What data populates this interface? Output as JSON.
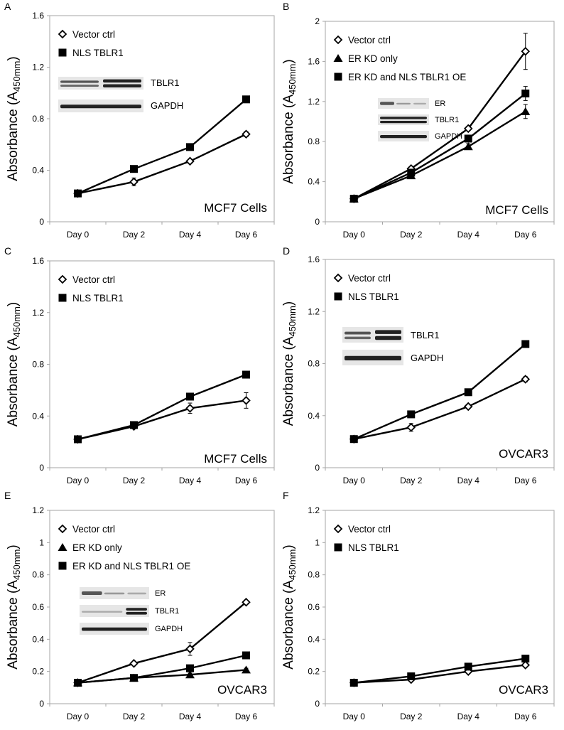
{
  "figure_title": "",
  "chart_data": [
    {
      "panel_label": "A",
      "type": "line",
      "categories": [
        "Day 0",
        "Day 2",
        "Day 4",
        "Day 6"
      ],
      "ylim": [
        0,
        1.6
      ],
      "yticks": [
        "0",
        "0.4",
        "0.8",
        "1.2",
        "1.6"
      ],
      "ylabel_main": "Absorbance (A",
      "ylabel_sub": "450mm",
      "ylabel_close": ")",
      "cell_label": "MCF7 Cells",
      "series": [
        {
          "name": "Vector ctrl",
          "marker": "diamond",
          "values": [
            0.22,
            0.31,
            0.47,
            0.68
          ],
          "errors": [
            0.01,
            0.03,
            0.01,
            0.02
          ]
        },
        {
          "name": "NLS TBLR1",
          "marker": "square",
          "values": [
            0.22,
            0.41,
            0.58,
            0.95
          ],
          "errors": [
            0.01,
            0.01,
            0.01,
            0.01
          ]
        }
      ],
      "blot": {
        "bands": [
          {
            "label": "TBLR1",
            "pattern": "ab"
          },
          {
            "label": "GAPDH",
            "pattern": "g"
          }
        ]
      }
    },
    {
      "panel_label": "B",
      "type": "line",
      "categories": [
        "Day 0",
        "Day 2",
        "Day 4",
        "Day 6"
      ],
      "ylim": [
        0,
        2.0
      ],
      "yticks": [
        "0",
        "0.4",
        "0.8",
        "1.2",
        "1.6",
        "2"
      ],
      "ylabel_main": "Absorbance (A",
      "ylabel_sub": "450mm",
      "ylabel_close": ")",
      "cell_label": "MCF7 Cells",
      "series": [
        {
          "name": "Vector ctrl",
          "marker": "diamond",
          "values": [
            0.23,
            0.53,
            0.93,
            1.7
          ],
          "errors": [
            0.01,
            0.02,
            0.02,
            0.18
          ]
        },
        {
          "name": "ER KD only",
          "marker": "triangle",
          "values": [
            0.23,
            0.46,
            0.75,
            1.1
          ],
          "errors": [
            0.01,
            0.02,
            0.03,
            0.07
          ]
        },
        {
          "name": "ER KD and NLS TBLR1 OE",
          "marker": "square",
          "values": [
            0.23,
            0.49,
            0.83,
            1.28
          ],
          "errors": [
            0.01,
            0.02,
            0.03,
            0.07
          ]
        }
      ],
      "blot": {
        "bands": [
          {
            "label": "ER",
            "pattern": "er"
          },
          {
            "label": "TBLR1",
            "pattern": "d"
          },
          {
            "label": "GAPDH",
            "pattern": "g"
          }
        ]
      }
    },
    {
      "panel_label": "C",
      "type": "line",
      "categories": [
        "Day 0",
        "Day 2",
        "Day 4",
        "Day 6"
      ],
      "ylim": [
        0,
        1.6
      ],
      "yticks": [
        "0",
        "0.4",
        "0.8",
        "1.2",
        "1.6"
      ],
      "ylabel_main": "Absorbance (A",
      "ylabel_sub": "450mm",
      "ylabel_close": ")",
      "cell_label": "MCF7 Cells",
      "series": [
        {
          "name": "Vector ctrl",
          "marker": "diamond",
          "values": [
            0.22,
            0.32,
            0.46,
            0.52
          ],
          "errors": [
            0.01,
            0.02,
            0.04,
            0.06
          ]
        },
        {
          "name": "NLS TBLR1",
          "marker": "square",
          "values": [
            0.22,
            0.33,
            0.55,
            0.72
          ],
          "errors": [
            0.01,
            0.01,
            0.02,
            0.02
          ]
        }
      ]
    },
    {
      "panel_label": "D",
      "type": "line",
      "categories": [
        "Day 0",
        "Day 2",
        "Day 4",
        "Day 6"
      ],
      "ylim": [
        0,
        1.6
      ],
      "yticks": [
        "0",
        "0.4",
        "0.8",
        "1.2",
        "1.6"
      ],
      "ylabel_main": "Absorbance (A",
      "ylabel_sub": "450mm",
      "ylabel_close": ")",
      "cell_label": "OVCAR3",
      "series": [
        {
          "name": "Vector ctrl",
          "marker": "diamond",
          "values": [
            0.22,
            0.31,
            0.47,
            0.68
          ],
          "errors": [
            0.01,
            0.03,
            0.01,
            0.02
          ]
        },
        {
          "name": "NLS TBLR1",
          "marker": "square",
          "values": [
            0.22,
            0.41,
            0.58,
            0.95
          ],
          "errors": [
            0.01,
            0.01,
            0.01,
            0.01
          ]
        }
      ],
      "blot": {
        "bands": [
          {
            "label": "TBLR1",
            "pattern": "ab"
          },
          {
            "label": "GAPDH",
            "pattern": "g"
          }
        ]
      }
    },
    {
      "panel_label": "E",
      "type": "line",
      "categories": [
        "Day 0",
        "Day 2",
        "Day 4",
        "Day 6"
      ],
      "ylim": [
        0,
        1.2
      ],
      "yticks": [
        "0",
        "0.2",
        "0.4",
        "0.6",
        "0.8",
        "1",
        "1.2"
      ],
      "ylabel_main": "Absorbance (A",
      "ylabel_sub": "450mm",
      "ylabel_close": ")",
      "cell_label": "OVCAR3",
      "series": [
        {
          "name": "Vector ctrl",
          "marker": "diamond",
          "values": [
            0.13,
            0.25,
            0.34,
            0.63
          ],
          "errors": [
            0.01,
            0.01,
            0.04,
            0.01
          ]
        },
        {
          "name": "ER KD only",
          "marker": "triangle",
          "values": [
            0.13,
            0.16,
            0.18,
            0.21
          ],
          "errors": [
            0.01,
            0.01,
            0.01,
            0.01
          ]
        },
        {
          "name": "ER KD and NLS TBLR1 OE",
          "marker": "square",
          "values": [
            0.13,
            0.16,
            0.22,
            0.3
          ],
          "errors": [
            0.01,
            0.01,
            0.01,
            0.01
          ]
        }
      ],
      "blot": {
        "bands": [
          {
            "label": "ER",
            "pattern": "er"
          },
          {
            "label": "TBLR1",
            "pattern": "t"
          },
          {
            "label": "GAPDH",
            "pattern": "g"
          }
        ]
      }
    },
    {
      "panel_label": "F",
      "type": "line",
      "categories": [
        "Day 0",
        "Day 2",
        "Day 4",
        "Day 6"
      ],
      "ylim": [
        0,
        1.2
      ],
      "yticks": [
        "0",
        "0.2",
        "0.4",
        "0.6",
        "0.8",
        "1",
        "1.2"
      ],
      "ylabel_main": "Absorbance (A",
      "ylabel_sub": "450mm",
      "ylabel_close": ")",
      "cell_label": "OVCAR3",
      "series": [
        {
          "name": "Vector ctrl",
          "marker": "diamond",
          "values": [
            0.13,
            0.15,
            0.2,
            0.24
          ],
          "errors": [
            0.01,
            0.01,
            0.01,
            0.01
          ]
        },
        {
          "name": "NLS TBLR1",
          "marker": "square",
          "values": [
            0.13,
            0.17,
            0.23,
            0.28
          ],
          "errors": [
            0.01,
            0.01,
            0.01,
            0.01
          ]
        }
      ]
    }
  ]
}
